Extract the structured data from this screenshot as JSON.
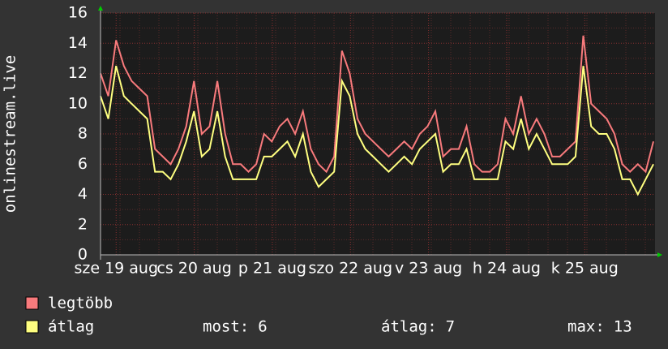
{
  "chart_data": {
    "type": "line",
    "ylabel": "onlinestream.live",
    "ylim": [
      0,
      16
    ],
    "yticks": [
      0,
      2,
      4,
      6,
      8,
      10,
      12,
      14,
      16
    ],
    "xlim": [
      0,
      7.1
    ],
    "xticks": [
      {
        "value": 0.2,
        "label": "sze 19 aug"
      },
      {
        "value": 1.2,
        "label": "cs 20 aug"
      },
      {
        "value": 2.2,
        "label": "p 21 aug"
      },
      {
        "value": 3.2,
        "label": "szo 22 aug"
      },
      {
        "value": 4.2,
        "label": "v 23 aug"
      },
      {
        "value": 5.2,
        "label": "h 24 aug"
      },
      {
        "value": 6.2,
        "label": "k 25 aug"
      }
    ],
    "grid": true,
    "series": [
      {
        "name": "legtöbb",
        "color": "#f87a7c",
        "values": [
          12,
          10.5,
          14.2,
          12.5,
          11.5,
          11,
          10.5,
          7,
          6.5,
          6,
          7,
          8.5,
          11.5,
          8,
          8.5,
          11.5,
          8,
          6,
          6,
          5.5,
          6,
          8,
          7.5,
          8.5,
          9,
          8,
          9.5,
          7,
          6,
          5.5,
          6.5,
          13.5,
          12,
          9,
          8,
          7.5,
          7,
          6.5,
          7,
          7.5,
          7,
          8,
          8.5,
          9.5,
          6.5,
          7,
          7,
          8.5,
          6,
          5.5,
          5.5,
          6,
          9,
          8,
          10.5,
          8,
          9,
          8,
          6.5,
          6.5,
          7,
          7.5,
          14.5,
          10,
          9.5,
          9,
          8,
          6,
          5.5,
          6,
          5.5,
          7.5
        ]
      },
      {
        "name": "átlag",
        "color": "#ffff80",
        "values": [
          10.5,
          9,
          12.5,
          10.5,
          10,
          9.5,
          9,
          5.5,
          5.5,
          5,
          6,
          7.5,
          9.5,
          6.5,
          7,
          9.5,
          6.5,
          5,
          5,
          5,
          5,
          6.5,
          6.5,
          7,
          7.5,
          6.5,
          8,
          5.5,
          4.5,
          5,
          5.5,
          11.5,
          10.5,
          8,
          7,
          6.5,
          6,
          5.5,
          6,
          6.5,
          6,
          7,
          7.5,
          8,
          5.5,
          6,
          6,
          7,
          5,
          5,
          5,
          5,
          7.5,
          7,
          9,
          7,
          8,
          7,
          6,
          6,
          6,
          6.5,
          12.5,
          8.5,
          8,
          8,
          7,
          5,
          5,
          4,
          5,
          6
        ]
      }
    ],
    "stats": [
      {
        "label": "most:",
        "value": 6
      },
      {
        "label": "átlag:",
        "value": 7
      },
      {
        "label": "max:",
        "value": 13
      }
    ]
  }
}
